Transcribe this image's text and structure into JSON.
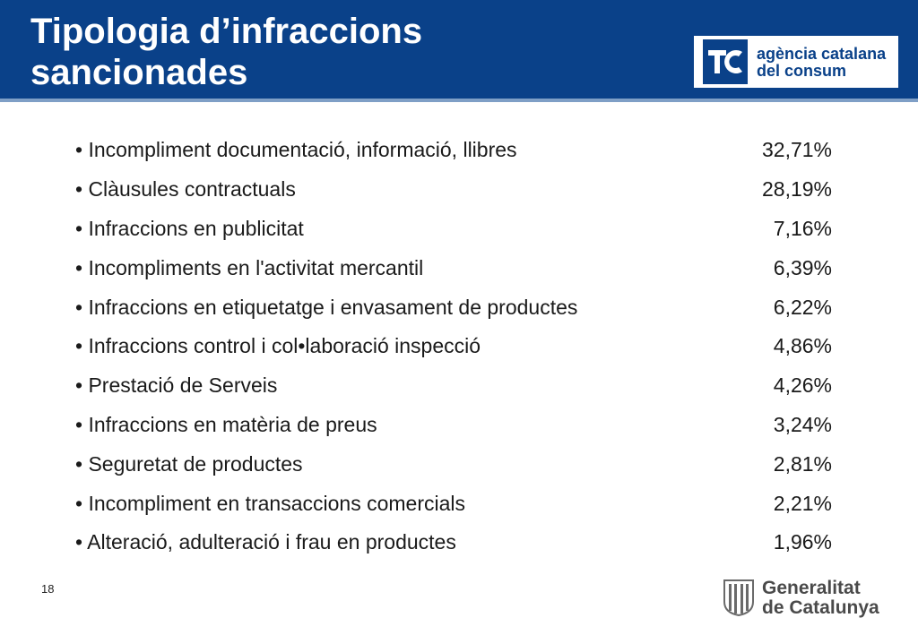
{
  "header": {
    "title_line1": "Tipologia d’infraccions",
    "title_line2": "sancionades",
    "logo_line1": "agència catalana",
    "logo_line2": "del consum",
    "logo_icon": "acc-logo-icon"
  },
  "items": [
    {
      "label": "• Incompliment documentació, informació, llibres",
      "value": "32,71%"
    },
    {
      "label": "• Clàusules contractuals",
      "value": "28,19%"
    },
    {
      "label": "• Infraccions en publicitat",
      "value": "7,16%"
    },
    {
      "label": "• Incompliments en l'activitat mercantil",
      "value": "6,39%"
    },
    {
      "label": "• Infraccions en etiquetatge i envasament de productes",
      "value": "6,22%"
    },
    {
      "label": "• Infraccions control i col•laboració inspecció",
      "value": "4,86%"
    },
    {
      "label": "• Prestació de Serveis",
      "value": "4,26%"
    },
    {
      "label": "• Infraccions en matèria de preus",
      "value": "3,24%"
    },
    {
      "label": "• Seguretat de productes",
      "value": "2,81%"
    },
    {
      "label": "• Incompliment en transaccions comercials",
      "value": "2,21%"
    },
    {
      "label": "• Alteració, adulteració i frau en productes",
      "value": "1,96%"
    }
  ],
  "footer": {
    "page_number": "18",
    "gen_line1": "Generalitat",
    "gen_line2": "de Catalunya",
    "gen_icon": "generalitat-seal-icon"
  },
  "colors": {
    "header_bg": "#0a4189",
    "header_rule": "#7f9fc6",
    "text": "#1a1a1a"
  }
}
